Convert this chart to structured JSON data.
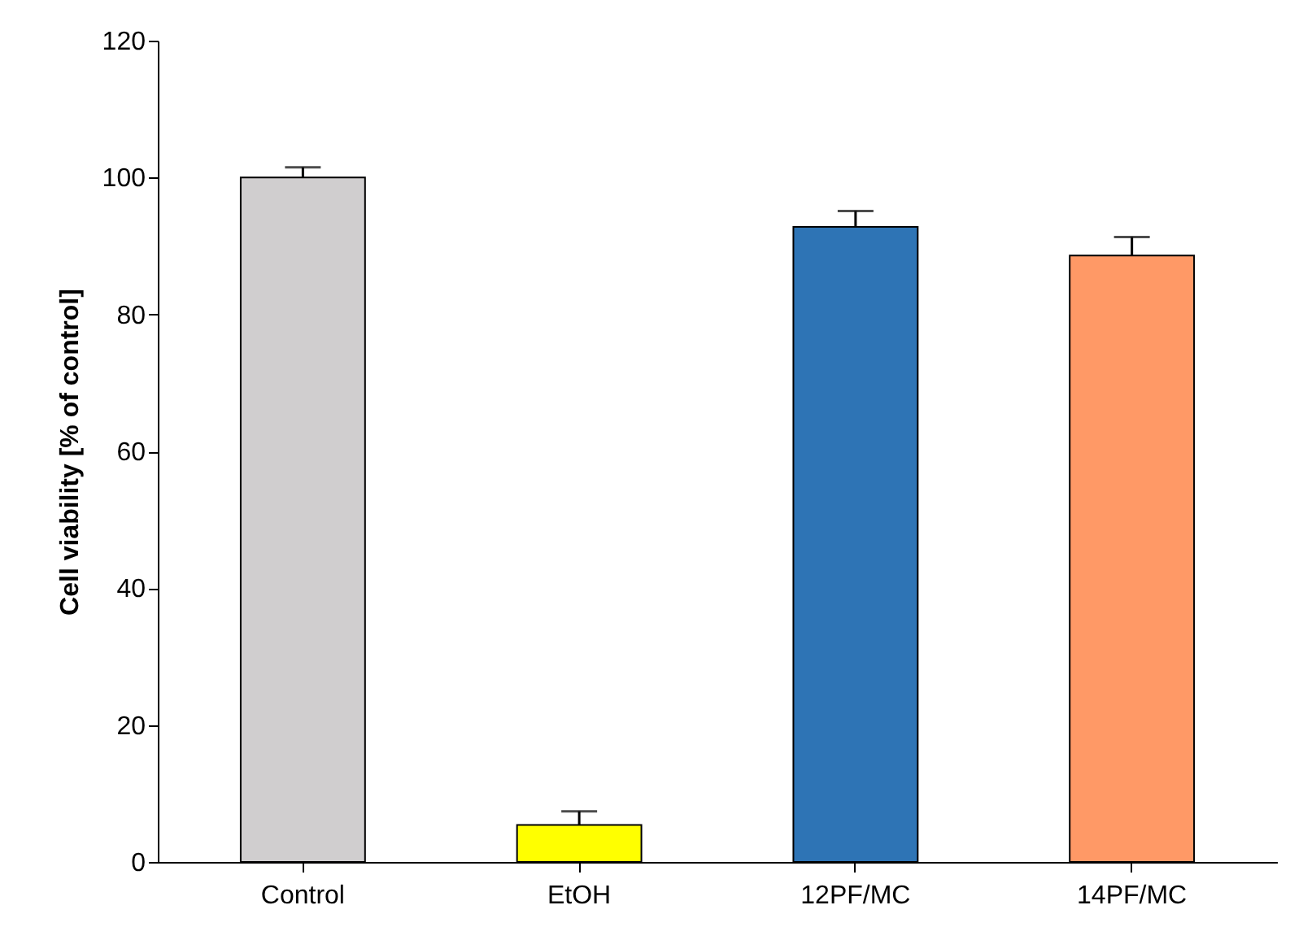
{
  "chart_data": {
    "type": "bar",
    "ylabel": "Cell viability [% of control]",
    "categories": [
      "Control",
      "EtOH",
      "12PF/MC",
      "14PF/MC"
    ],
    "values": [
      100,
      5.4,
      92.8,
      88.6
    ],
    "colors": [
      "#d0cecf",
      "#ffff00",
      "#2e74b5",
      "#ff9966"
    ],
    "errors": [
      [
        100,
        101.5
      ],
      [
        5.4,
        7.4
      ],
      [
        92.8,
        95.1
      ],
      [
        88.6,
        91.3
      ]
    ],
    "ylim": [
      0,
      120
    ],
    "yticks": [
      0,
      20,
      40,
      60,
      80,
      100,
      120
    ],
    "grid": false
  }
}
